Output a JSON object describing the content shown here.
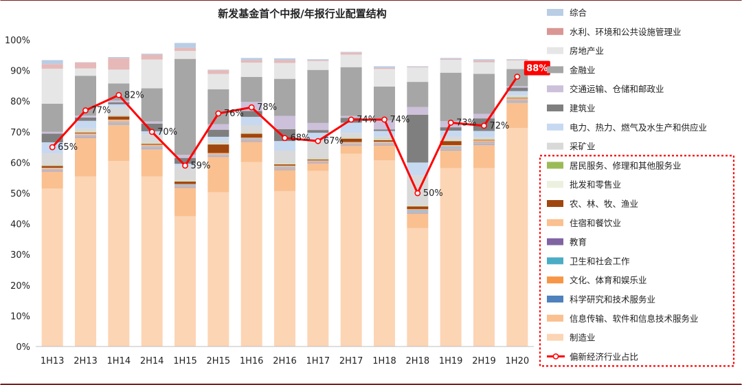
{
  "chart_data": {
    "type": "bar",
    "subtype": "stacked-100-percent-with-line",
    "title": "新发基金首个中报/年报行业配置结构",
    "categories": [
      "1H13",
      "2H13",
      "1H14",
      "2H14",
      "1H15",
      "2H15",
      "1H16",
      "2H16",
      "1H17",
      "2H17",
      "1H18",
      "2H18",
      "1H19",
      "2H19",
      "1H20"
    ],
    "yaxis": {
      "min": 0,
      "max": 100,
      "step": 10,
      "unit": "%",
      "tick_labels": [
        "0%",
        "10%",
        "20%",
        "30%",
        "40%",
        "50%",
        "60%",
        "70%",
        "80%",
        "90%",
        "100%"
      ]
    },
    "grid": false,
    "legend_position": "right",
    "series": [
      {
        "name": "制造业",
        "color": "#fcd5b5",
        "values": [
          51.5,
          55.5,
          60.5,
          55.5,
          42.5,
          50.3,
          60.2,
          50.7,
          57.3,
          62.9,
          60.7,
          38.6,
          58.2,
          58.2,
          71.3
        ]
      },
      {
        "name": "信息传输、软件和信息技术服务业",
        "color": "#fac090",
        "values": [
          5.5,
          12.5,
          11.8,
          8.8,
          9.2,
          11.5,
          6.5,
          6.8,
          2.3,
          2.5,
          4.8,
          4.7,
          5.7,
          7.5,
          8.2
        ]
      },
      {
        "name": "科学研究和技术服务业",
        "color": "#8eb4e3",
        "values": [
          0.3,
          0.4,
          0.3,
          0.3,
          0.3,
          0.2,
          0.3,
          0.3,
          0.2,
          0.2,
          0.2,
          0.3,
          0.3,
          0.3,
          0.3
        ]
      },
      {
        "name": "文化、体育和娱乐业",
        "color": "#f4a582",
        "values": [
          0.3,
          0.4,
          0.3,
          0.3,
          0.3,
          0.3,
          0.3,
          0.3,
          0.3,
          0.3,
          0.3,
          0.3,
          0.3,
          0.3,
          0.3
        ]
      },
      {
        "name": "卫生和社会工作",
        "color": "#9ac3d8",
        "values": [
          0.2,
          0.2,
          0.4,
          0.4,
          0.4,
          0.3,
          0.4,
          0.4,
          0.2,
          0.3,
          0.3,
          0.5,
          0.7,
          0.3,
          0.3
        ]
      },
      {
        "name": "教育",
        "color": "#b3a2c7",
        "values": [
          0.1,
          0.1,
          0.1,
          0.1,
          0.1,
          0.1,
          0.1,
          0.1,
          0.1,
          0.1,
          0.1,
          0.1,
          0.1,
          0.1,
          0.1
        ]
      },
      {
        "name": "住宿和餐饮业",
        "color": "#f9b887",
        "values": [
          0.4,
          0.4,
          0.6,
          0.4,
          0.2,
          0.4,
          0.3,
          0.4,
          0.3,
          0.4,
          0.4,
          0.3,
          0.4,
          0.5,
          0.4
        ]
      },
      {
        "name": "农、林、牧、渔业",
        "color": "#a0460f",
        "values": [
          0.6,
          0.3,
          1.0,
          0.3,
          0.8,
          2.8,
          1.3,
          0.4,
          0.3,
          1.1,
          0.5,
          0.9,
          1.3,
          0.2,
          0.2
        ]
      },
      {
        "name": "批发和零售业",
        "color": "#ebf1de",
        "values": [
          0.2,
          0.3,
          0.1,
          0.2,
          0.2,
          0.2,
          0.2,
          0.2,
          0.2,
          0.2,
          0.2,
          0.2,
          0.2,
          0.2,
          0.2
        ]
      },
      {
        "name": "居民服务、修理和其他服务业",
        "color": "#9bbb59",
        "values": [
          0.1,
          0.1,
          0.1,
          0.1,
          0.1,
          0.1,
          0.1,
          0.1,
          0.1,
          0.1,
          0.1,
          0.1,
          0.1,
          0.1,
          0.1
        ]
      },
      {
        "name": "采矿业",
        "color": "#d9d9d9",
        "values": [
          3.8,
          0.9,
          2.9,
          2.8,
          4.7,
          0.9,
          2.5,
          4.2,
          6.2,
          1.6,
          0.9,
          9.8,
          1.1,
          0.6,
          0.6
        ]
      },
      {
        "name": "电力、热力、燃气及水生产和供应业",
        "color": "#c6d9f1",
        "values": [
          3.6,
          2.5,
          0.9,
          1.0,
          0.8,
          1.3,
          2.7,
          3.1,
          2.2,
          3.3,
          1.8,
          4.2,
          2.0,
          2.0,
          1.3
        ]
      },
      {
        "name": "建筑业",
        "color": "#7f7f7f",
        "values": [
          2.8,
          1.1,
          0.6,
          2.5,
          1.9,
          2.3,
          1.9,
          3.9,
          0.9,
          1.6,
          0.5,
          15.6,
          1.1,
          4.1,
          1.1
        ]
      },
      {
        "name": "交通运输、仓储和邮政业",
        "color": "#ccc0da",
        "values": [
          0.6,
          0.6,
          0.6,
          0.7,
          1.0,
          1.8,
          3.0,
          4.3,
          2.3,
          0.6,
          2.9,
          2.5,
          2.0,
          1.5,
          0.5
        ]
      },
      {
        "name": "金融业",
        "color": "#a6a6a6",
        "values": [
          9.2,
          13.0,
          5.6,
          10.8,
          31.3,
          11.4,
          8.1,
          12.1,
          17.3,
          15.9,
          11.1,
          8.2,
          15.8,
          13.0,
          5.6
        ]
      },
      {
        "name": "房地产业",
        "color": "#e6e6e6",
        "values": [
          11.4,
          2.4,
          4.5,
          9.4,
          2.6,
          5.0,
          4.7,
          5.2,
          2.9,
          4.1,
          5.7,
          4.7,
          4.2,
          3.8,
          2.8
        ]
      },
      {
        "name": "水利、环境和公共设施管理业",
        "color": "#e6b9b8",
        "values": [
          1.5,
          1.9,
          3.8,
          1.6,
          1.0,
          1.2,
          0.8,
          0.9,
          0.3,
          0.7,
          0.4,
          0.2,
          0.3,
          0.6,
          0.2
        ]
      },
      {
        "name": "综合",
        "color": "#b9cde5",
        "values": [
          1.3,
          0.1,
          0.3,
          0.3,
          1.6,
          0.2,
          0.7,
          0.6,
          0.3,
          0.2,
          0.5,
          0.2,
          0.3,
          0.4,
          0.2
        ]
      }
    ],
    "line_series": {
      "name": "偏新经济行业占比",
      "color": "#ff0000",
      "values": [
        65,
        77,
        82,
        70,
        59,
        76,
        78,
        68,
        67,
        74,
        74,
        50,
        73,
        72,
        88
      ],
      "labels": [
        "65%",
        "77%",
        "82%",
        "70%",
        "59%",
        "76%",
        "78%",
        "68%",
        "67%",
        "74%",
        "74%",
        "50%",
        "73%",
        "72%",
        "88%"
      ]
    },
    "legend_order": [
      "综合",
      "水利、环境和公共设施管理业",
      "房地产业",
      "金融业",
      "交通运输、仓储和邮政业",
      "建筑业",
      "电力、热力、燃气及水生产和供应业",
      "采矿业",
      "居民服务、修理和其他服务业",
      "批发和零售业",
      "农、林、牧、渔业",
      "住宿和餐饮业",
      "教育",
      "卫生和社会工作",
      "文化、体育和娱乐业",
      "科学研究和技术服务业",
      "信息传输、软件和信息技术服务业",
      "制造业",
      "偏新经济行业占比"
    ],
    "legend_colors": {
      "综合": "#b9cde5",
      "水利、环境和公共设施管理业": "#d99694",
      "房地产业": "#e6e6e6",
      "金融业": "#a6a6a6",
      "交通运输、仓储和邮政业": "#ccc0da",
      "建筑业": "#7f7f7f",
      "电力、热力、燃气及水生产和供应业": "#c6d9f1",
      "采矿业": "#d9d9d9",
      "居民服务、修理和其他服务业": "#9bbb59",
      "批发和零售业": "#ebf1de",
      "农、林、牧、渔业": "#a0460f",
      "住宿和餐饮业": "#fac090",
      "教育": "#8064a2",
      "卫生和社会工作": "#4bacc6",
      "文化、体育和娱乐业": "#f79646",
      "科学研究和技术服务业": "#4f81bd",
      "信息传输、软件和信息技术服务业": "#fac090",
      "制造业": "#fcd5b5"
    },
    "highlight_box_legend_items": [
      "居民服务、修理和其他服务业",
      "批发和零售业",
      "农、林、牧、渔业",
      "住宿和餐饮业",
      "教育",
      "卫生和社会工作",
      "文化、体育和娱乐业",
      "科学研究和技术服务业",
      "信息传输、软件和信息技术服务业",
      "制造业",
      "偏新经济行业占比"
    ]
  }
}
